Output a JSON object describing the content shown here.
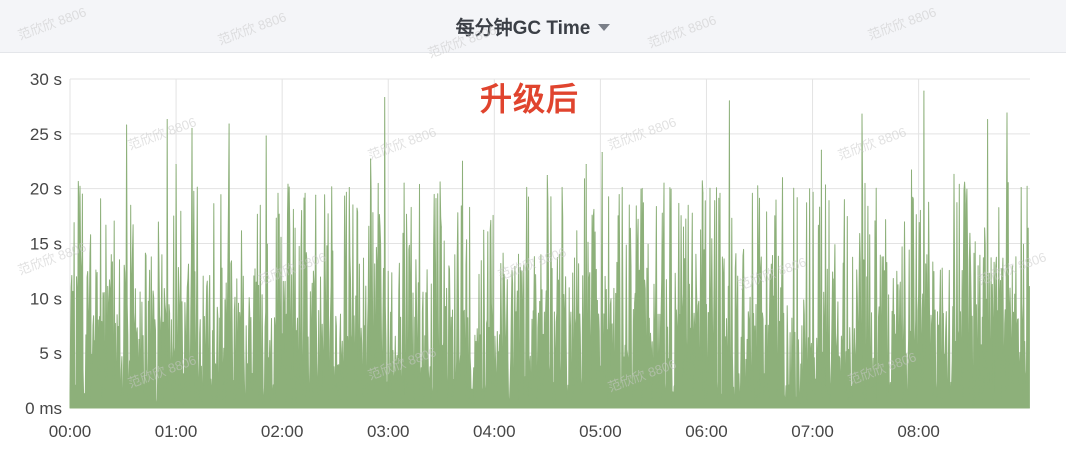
{
  "panel": {
    "title": "每分钟GC Time",
    "title_icon": "caret-down-icon",
    "annotation": "升级后"
  },
  "watermark_text": "范欣欣 8806",
  "colors": {
    "series": "#8db07a",
    "grid": "#e3e3e3",
    "annotation": "#e0442e",
    "header_bg": "#f4f5f8"
  },
  "chart_data": {
    "type": "area",
    "title": "每分钟GC Time",
    "xlabel": "",
    "ylabel": "",
    "x_ticks": [
      "00:00",
      "01:00",
      "02:00",
      "03:00",
      "04:00",
      "05:00",
      "06:00",
      "07:00",
      "08:00"
    ],
    "y_ticks": [
      "0 ms",
      "5 s",
      "10 s",
      "15 s",
      "20 s",
      "25 s",
      "30 s"
    ],
    "y_tick_values": [
      0,
      5,
      10,
      15,
      20,
      25,
      30
    ],
    "ylim": [
      0,
      30
    ],
    "x_range_hours": [
      0,
      9.05
    ],
    "grid": true,
    "series": [
      {
        "name": "",
        "color": "#8db07a",
        "sampling": "per-minute, dense oscillating values (~0–20 s baseline)",
        "peaks": [
          {
            "t": "00:07",
            "value": 19.5
          },
          {
            "t": "00:32",
            "value": 25.8
          },
          {
            "t": "00:55",
            "value": 26.3
          },
          {
            "t": "01:00",
            "value": 22.2
          },
          {
            "t": "01:09",
            "value": 25.5
          },
          {
            "t": "01:30",
            "value": 25.9
          },
          {
            "t": "01:51",
            "value": 24.8
          },
          {
            "t": "02:19",
            "value": 19.4
          },
          {
            "t": "02:38",
            "value": 20.1
          },
          {
            "t": "02:50",
            "value": 22.7
          },
          {
            "t": "02:58",
            "value": 28.3
          },
          {
            "t": "03:09",
            "value": 20.5
          },
          {
            "t": "03:30",
            "value": 16.5
          },
          {
            "t": "03:42",
            "value": 22.5
          },
          {
            "t": "03:54",
            "value": 16.2
          },
          {
            "t": "04:30",
            "value": 21.2
          },
          {
            "t": "04:52",
            "value": 22.2
          },
          {
            "t": "05:01",
            "value": 23.3
          },
          {
            "t": "05:36",
            "value": 20.5
          },
          {
            "t": "05:58",
            "value": 19.6
          },
          {
            "t": "06:13",
            "value": 28.0
          },
          {
            "t": "06:43",
            "value": 21.0
          },
          {
            "t": "07:05",
            "value": 23.5
          },
          {
            "t": "07:28",
            "value": 26.8
          },
          {
            "t": "07:56",
            "value": 21.7
          },
          {
            "t": "08:03",
            "value": 28.9
          },
          {
            "t": "08:20",
            "value": 21.3
          },
          {
            "t": "08:39",
            "value": 26.3
          },
          {
            "t": "08:50",
            "value": 26.9
          },
          {
            "t": "08:58",
            "value": 20.1
          }
        ]
      }
    ]
  }
}
